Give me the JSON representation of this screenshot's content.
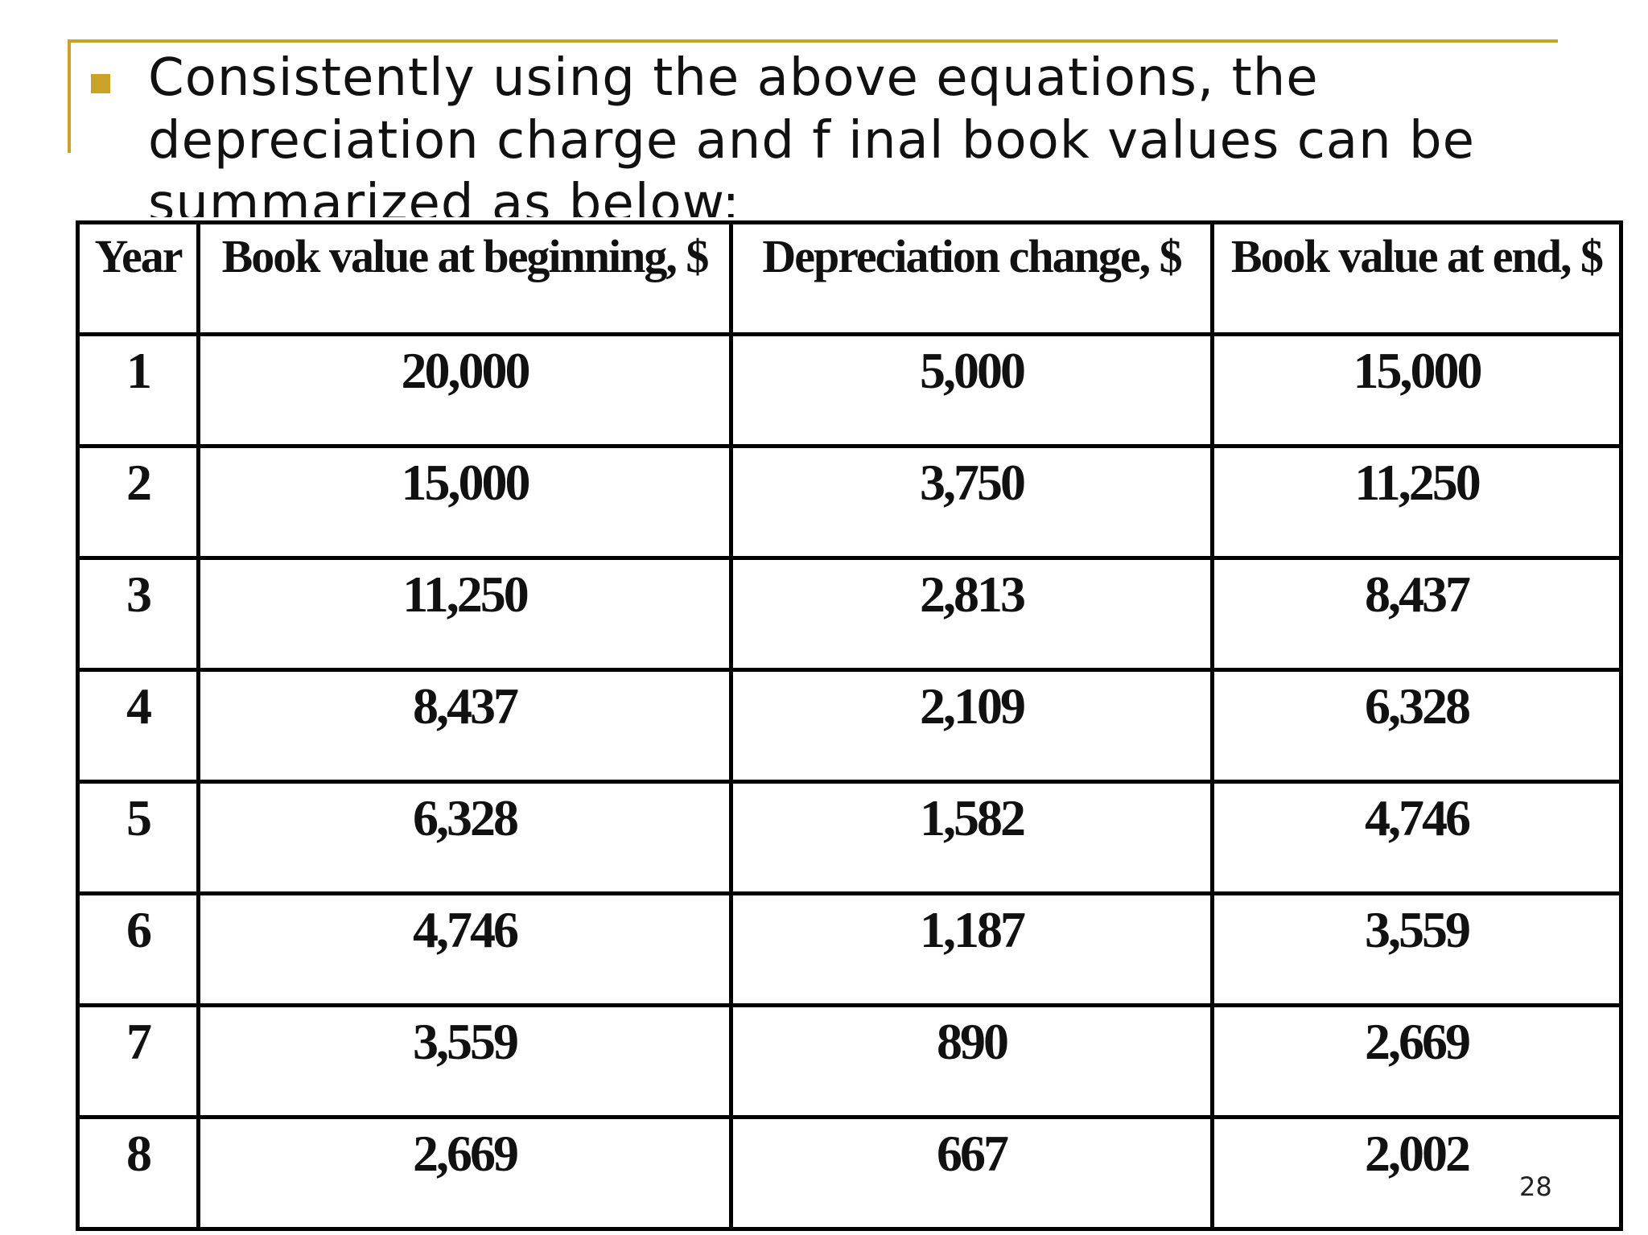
{
  "slide": {
    "bullet_text": "Consistently using the above equations, the depreciation charge and f inal book values can be summarized as below:",
    "page_number": "28",
    "accent_color": "#c9a227"
  },
  "table": {
    "headers": [
      "Year",
      "Book value at beginning, $",
      "Depreciation change, $",
      "Book value at end, $"
    ],
    "rows": [
      [
        "1",
        "20,000",
        "5,000",
        "15,000"
      ],
      [
        "2",
        "15,000",
        "3,750",
        "11,250"
      ],
      [
        "3",
        "11,250",
        "2,813",
        "8,437"
      ],
      [
        "4",
        "8,437",
        "2,109",
        "6,328"
      ],
      [
        "5",
        "6,328",
        "1,582",
        "4,746"
      ],
      [
        "6",
        "4,746",
        "1,187",
        "3,559"
      ],
      [
        "7",
        "3,559",
        "890",
        "2,669"
      ],
      [
        "8",
        "2,669",
        "667",
        "2,002"
      ]
    ]
  }
}
